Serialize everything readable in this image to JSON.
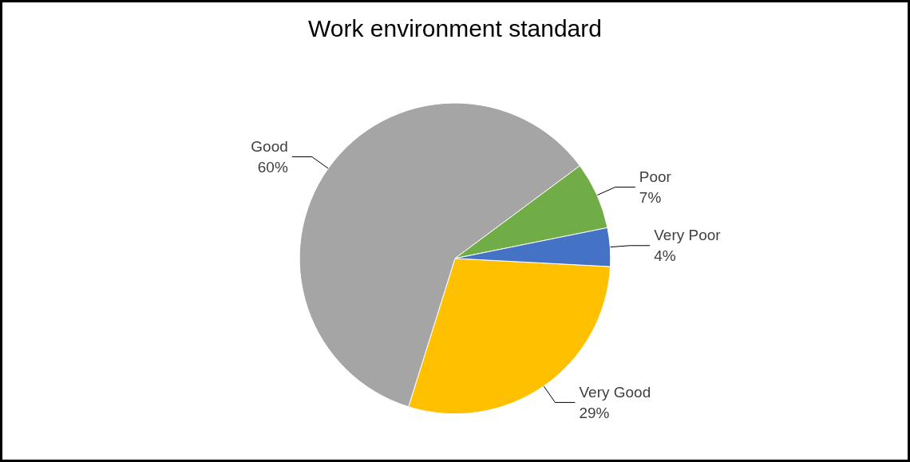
{
  "chart_data": {
    "type": "pie",
    "title": "Work environment standard",
    "categories": [
      "Very Good",
      "Good",
      "Poor",
      "Very Poor"
    ],
    "values": [
      29,
      60,
      7,
      4
    ],
    "value_labels": [
      "29%",
      "60%",
      "7%",
      "4%"
    ],
    "colors": [
      "#ffc000",
      "#a5a5a5",
      "#70ad47",
      "#4472c4"
    ],
    "legend": false
  }
}
